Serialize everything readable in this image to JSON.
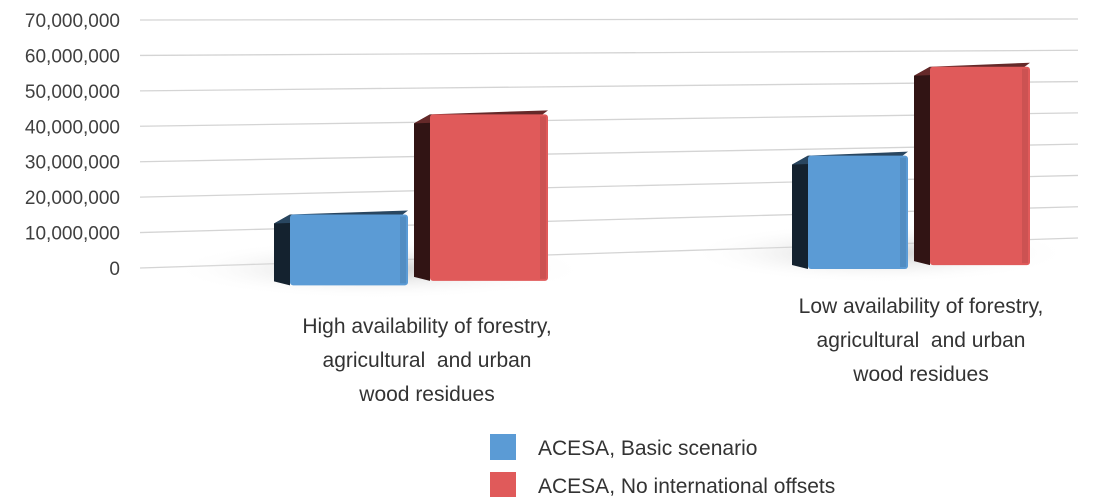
{
  "chart_data": {
    "type": "bar",
    "title": "",
    "xlabel": "",
    "ylabel": "",
    "ylim": [
      0,
      70000000
    ],
    "yticks": [
      "70,000,000",
      "60,000,000",
      "50,000,000",
      "40,000,000",
      "30,000,000",
      "20,000,000",
      "10,000,000",
      "0"
    ],
    "categories": [
      [
        "High availability of forestry,",
        "agricultural  and urban",
        "wood residues"
      ],
      [
        "Low availability of forestry,",
        "agricultural  and urban",
        "wood residues"
      ]
    ],
    "series": [
      {
        "name": "ACESA, Basic scenario",
        "values": [
          20000000,
          32000000
        ],
        "color": "#5b9bd5"
      },
      {
        "name": "ACESA, No international offsets",
        "values": [
          47000000,
          56000000
        ],
        "color": "#e05a5a"
      }
    ],
    "grid": true,
    "legend_position": "bottom-center",
    "style": "3d-perspective"
  }
}
